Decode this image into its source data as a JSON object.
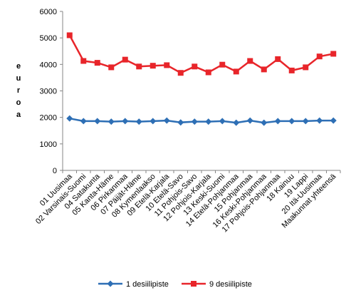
{
  "chart_data": {
    "type": "line",
    "title": "",
    "ylabel": "euroa",
    "xlabel": "",
    "ylim": [
      0,
      6000
    ],
    "yticks": [
      0,
      1000,
      2000,
      3000,
      4000,
      5000,
      6000
    ],
    "grid": false,
    "legend_position": "bottom",
    "categories": [
      "01 Uusimaa",
      "02 Varsinais-Suomi",
      "04 Satakunta",
      "05 Kanta-Häme",
      "06 Pirkanmaa",
      "07 Päijät-Häme",
      "08 Kymenlaakso",
      "09 Etelä-Karjala",
      "10 Etelä-Savo",
      "11 Pohjois-Savo",
      "12 Pohjois-Karjala",
      "13 Keski-Suomi",
      "14 Etelä-Pohjanmaa",
      "15 Pohjanmaa",
      "16 Keski-Pohjanmaa",
      "17 Pohjois-Pohjanmaa",
      "18 Kainuu",
      "19 Lappi",
      "20 Itä-Uusimaa",
      "Maakunnat yhteensä"
    ],
    "series": [
      {
        "name": "1 desiilipiste",
        "color": "#2e6fb5",
        "marker": "diamond",
        "values": [
          1960,
          1860,
          1860,
          1840,
          1860,
          1840,
          1860,
          1880,
          1810,
          1840,
          1840,
          1860,
          1800,
          1880,
          1800,
          1860,
          1860,
          1860,
          1880,
          1880
        ]
      },
      {
        "name": "9 desiilipiste",
        "color": "#e8252a",
        "marker": "square",
        "values": [
          5100,
          4130,
          4060,
          3890,
          4180,
          3920,
          3950,
          3970,
          3680,
          3920,
          3700,
          3990,
          3730,
          4130,
          3810,
          4200,
          3770,
          3890,
          4300,
          4400
        ]
      }
    ]
  }
}
